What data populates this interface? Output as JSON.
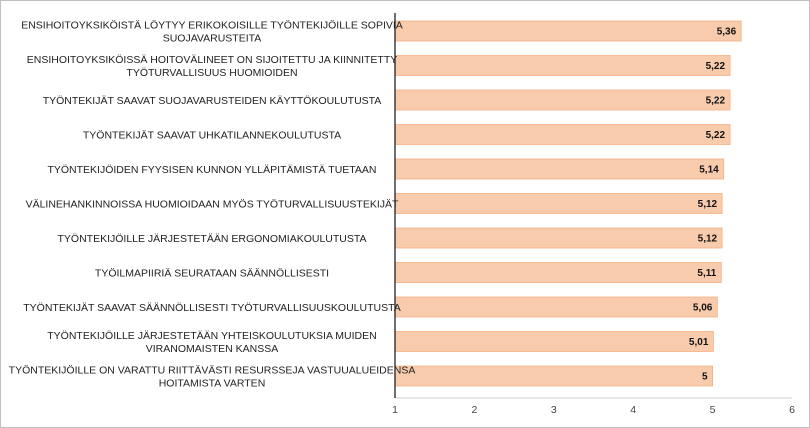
{
  "chart_data": {
    "type": "bar",
    "orientation": "horizontal",
    "categories": [
      [
        "ENSIHOITOYKSIKÖISTÄ LÖYTYY ERIKOKOISILLE TYÖNTEKIJÖILLE SOPIVIA",
        "SUOJAVARUSTEITA"
      ],
      [
        "ENSIHOITOYKSIKÖISSÄ HOITOVÄLINEET ON SIJOITETTU JA KIINNITETTY",
        "TYÖTURVALLISUUS HUOMIOIDEN"
      ],
      [
        "TYÖNTEKIJÄT SAAVAT SUOJAVARUSTEIDEN KÄYTTÖKOULUTUSTA"
      ],
      [
        "TYÖNTEKIJÄT SAAVAT UHKATILANNEKOULUTUSTA"
      ],
      [
        "TYÖNTEKIJÖIDEN FYYSISEN KUNNON YLLÄPITÄMISTÄ TUETAAN"
      ],
      [
        "VÄLINEHANKINNOISSA HUOMIOIDAAN MYÖS TYÖTURVALLISUUSTEKIJÄT"
      ],
      [
        "TYÖNTEKIJÖILLE JÄRJESTETÄÄN ERGONOMIAKOULUTUSTA"
      ],
      [
        "TYÖILMAPIIRIÄ SEURATAAN SÄÄNNÖLLISESTI"
      ],
      [
        "TYÖNTEKIJÄT SAAVAT SÄÄNNÖLLISESTI TYÖTURVALLISUUSKOULUTUSTA"
      ],
      [
        "TYÖNTEKIJÖILLE JÄRJESTETÄÄN YHTEISKOULUTUKSIA MUIDEN",
        "VIRANOMAISTEN KANSSA"
      ],
      [
        "TYÖNTEKIJÖILLE ON VARATTU RIITTÄVÄSTI RESURSSEJA VASTUUALUEIDENSA",
        "HOITAMISTA VARTEN"
      ]
    ],
    "values": [
      5.36,
      5.22,
      5.22,
      5.22,
      5.14,
      5.12,
      5.12,
      5.11,
      5.06,
      5.01,
      5
    ],
    "data_labels": [
      "5,36",
      "5,22",
      "5,22",
      "5,22",
      "5,14",
      "5,12",
      "5,12",
      "5,11",
      "5,06",
      "5,01",
      "5"
    ],
    "xlim": [
      1,
      6
    ],
    "x_ticks": [
      1,
      2,
      3,
      4,
      5,
      6
    ],
    "x_tick_labels": [
      "1",
      "2",
      "3",
      "4",
      "5",
      "6"
    ],
    "grid": false,
    "legend": "none",
    "title": "",
    "xlabel": "",
    "ylabel": "",
    "colors": {
      "bar_fill": "#F8CBAD",
      "bar_stroke": "#F4B183",
      "axis": "#222222",
      "frame": "#BFBFBF"
    }
  }
}
